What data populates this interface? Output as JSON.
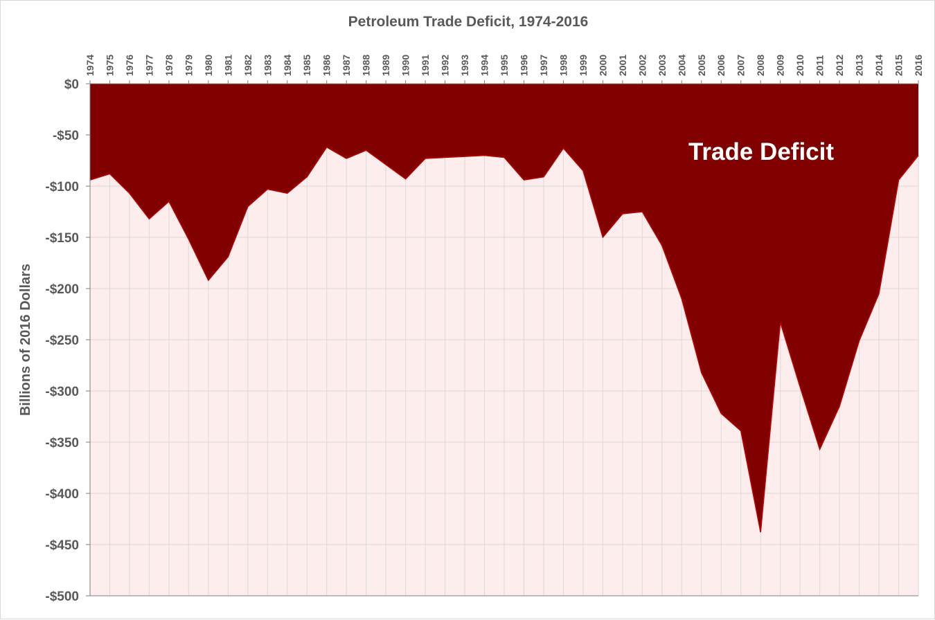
{
  "chart_data": {
    "type": "area",
    "title": "Petroleum Trade Deficit, 1974-2016",
    "ylabel": "Billions of 2016 Dollars",
    "xlabel": "",
    "annotation": "Trade Deficit",
    "x": [
      "1974",
      "1975",
      "1976",
      "1977",
      "1978",
      "1979",
      "1980",
      "1981",
      "1982",
      "1983",
      "1984",
      "1985",
      "1986",
      "1987",
      "1988",
      "1989",
      "1990",
      "1991",
      "1992",
      "1993",
      "1994",
      "1995",
      "1996",
      "1997",
      "1998",
      "1999",
      "2000",
      "2001",
      "2002",
      "2003",
      "2004",
      "2005",
      "2006",
      "2007",
      "2008",
      "2009",
      "2010",
      "2011",
      "2012",
      "2013",
      "2014",
      "2015",
      "2016"
    ],
    "y_ticks": [
      "$0",
      "-$50",
      "-$100",
      "-$150",
      "-$200",
      "-$250",
      "-$300",
      "-$350",
      "-$400",
      "-$450",
      "-$500"
    ],
    "y_tick_values": [
      0,
      -50,
      -100,
      -150,
      -200,
      -250,
      -300,
      -350,
      -400,
      -450,
      -500
    ],
    "ylim": [
      -500,
      0
    ],
    "grid": true,
    "legend": "none",
    "series": [
      {
        "values": [
          -94,
          -88,
          -107,
          -132,
          -115,
          -152,
          -192,
          -169,
          -120,
          -103,
          -107,
          -91,
          -62,
          -73,
          -65,
          -79,
          -93,
          -73,
          -72,
          -71,
          -70,
          -72,
          -94,
          -91,
          -63,
          -85,
          -150,
          -127,
          -125,
          -158,
          -210,
          -282,
          -322,
          -339,
          -438,
          -233,
          -296,
          -357,
          -315,
          -251,
          -205,
          -94,
          -70
        ]
      }
    ],
    "colors": {
      "fill": "#800000",
      "line": "#c00000",
      "plot_background": "#fdeded",
      "grid": "#d9d9d9",
      "axis": "#7f7f7f",
      "text": "#595959",
      "annotation_text": "#ffffff"
    }
  }
}
